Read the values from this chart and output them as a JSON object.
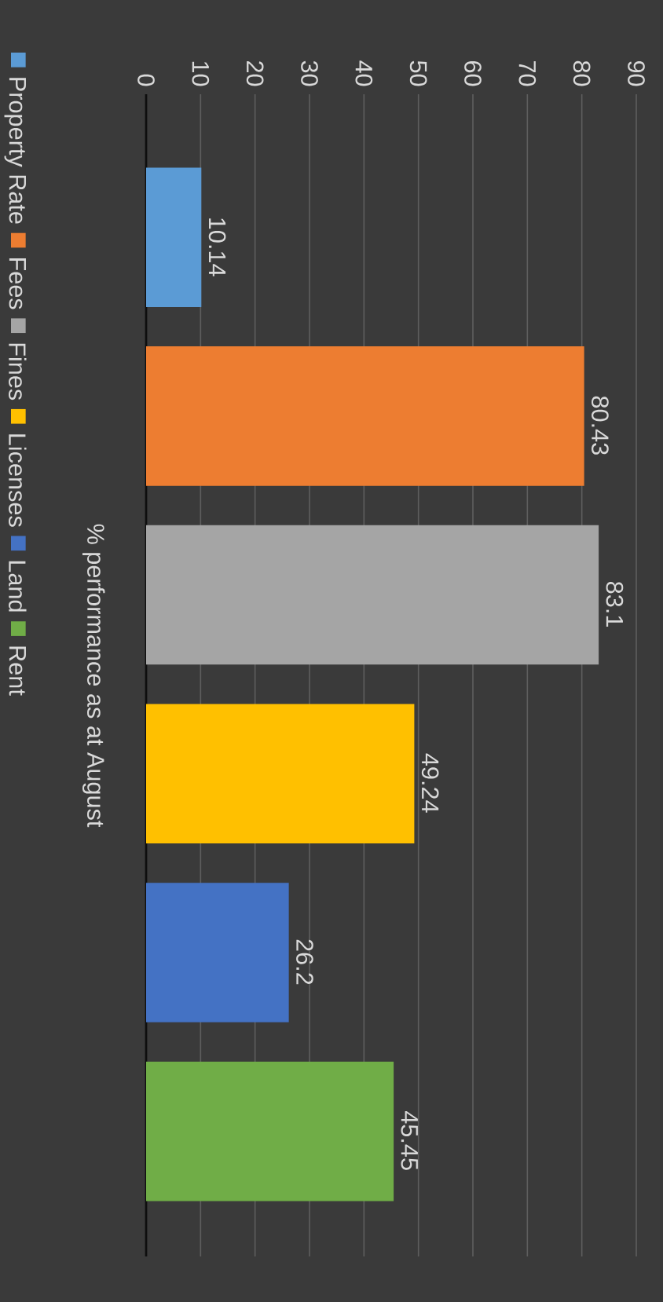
{
  "chart_data": {
    "type": "bar",
    "orientation": "horizontal",
    "ylabel": "% performance as at August",
    "categories": [
      null,
      null,
      null,
      null,
      null,
      null
    ],
    "series": [
      {
        "name": "Property Rate",
        "color": "#5b9bd5",
        "values": [
          10.14,
          null,
          null,
          null,
          null,
          null
        ]
      },
      {
        "name": "Fees",
        "color": "#ed7d31",
        "values": [
          null,
          80.43,
          null,
          null,
          null,
          null
        ]
      },
      {
        "name": "Fines",
        "color": "#a5a5a5",
        "values": [
          null,
          null,
          83.1,
          null,
          null,
          null
        ]
      },
      {
        "name": "Licenses",
        "color": "#ffc000",
        "values": [
          null,
          null,
          null,
          49.24,
          null,
          null
        ]
      },
      {
        "name": "Land",
        "color": "#4472c4",
        "values": [
          null,
          null,
          null,
          null,
          26.2,
          null
        ]
      },
      {
        "name": "Rent",
        "color": "#70ad47",
        "values": [
          null,
          null,
          null,
          null,
          null,
          45.45
        ]
      }
    ],
    "xlim": [
      0,
      90
    ],
    "xticks": [
      0,
      10,
      20,
      30,
      40,
      50,
      60,
      70,
      80,
      90
    ],
    "grid": "x",
    "legend": "left",
    "data_labels": true
  }
}
